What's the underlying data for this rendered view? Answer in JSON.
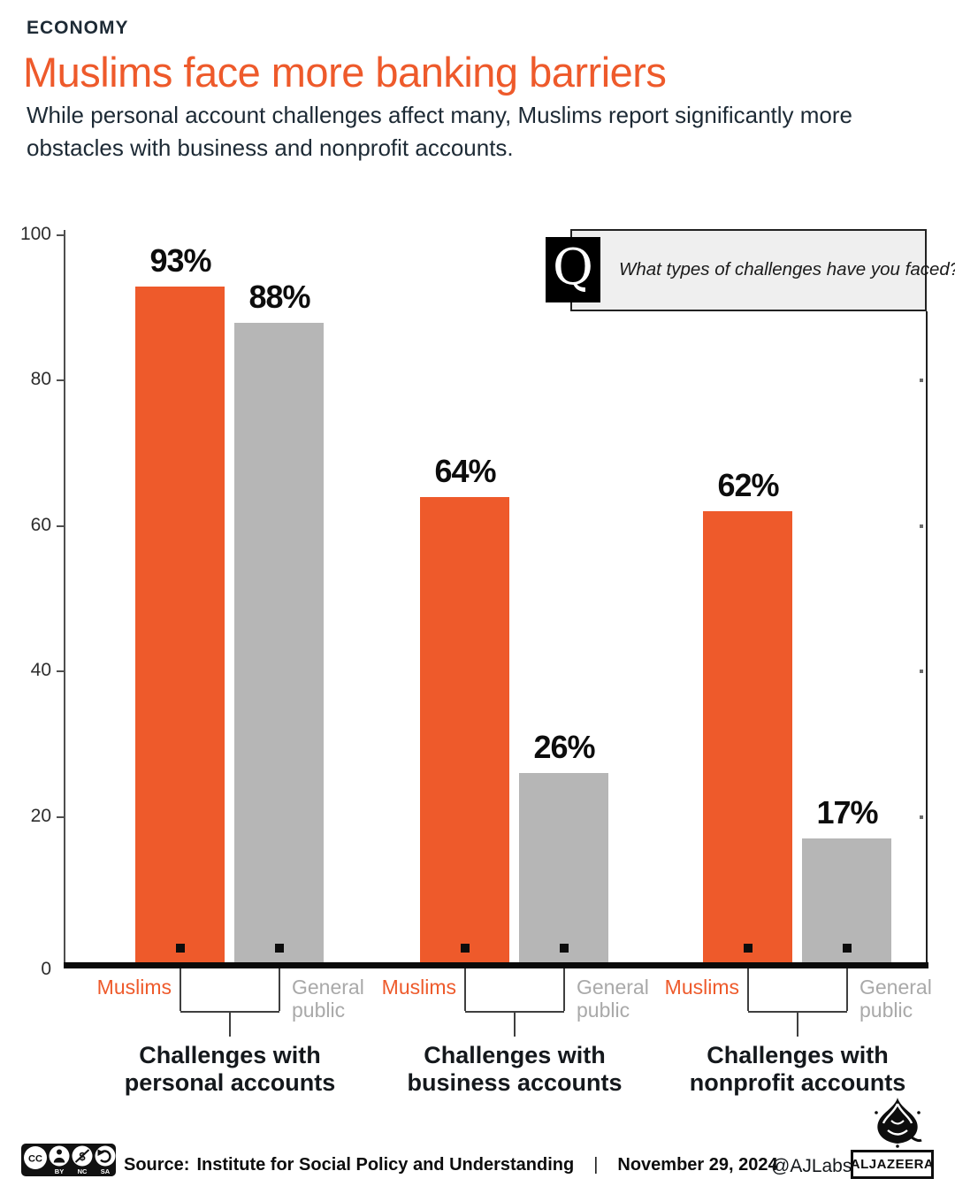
{
  "kicker": "ECONOMY",
  "title": "Muslims face more banking barriers",
  "subtitle": "While personal account challenges affect many, Muslims report significantly more obstacles with business and nonprofit accounts.",
  "question_box": {
    "q_glyph": "Q",
    "text": "What types of challenges have you faced?"
  },
  "chart_data": {
    "type": "bar",
    "categories": [
      "Challenges with personal accounts",
      "Challenges with business accounts",
      "Challenges with nonprofit accounts"
    ],
    "series": [
      {
        "name": "Muslims",
        "color": "#ee5a2b",
        "values": [
          93,
          64,
          62
        ]
      },
      {
        "name": "General public",
        "color": "#b6b6b6",
        "values": [
          88,
          26,
          17
        ]
      }
    ],
    "value_suffix": "%",
    "ylabel": "",
    "xlabel": "",
    "ylim": [
      0,
      100
    ],
    "yticks": [
      0,
      20,
      40,
      60,
      80,
      100
    ],
    "grid": false,
    "legend_position": "below-each-bar"
  },
  "footer": {
    "cc_glyph": "CC",
    "cc_labels": [
      "BY",
      "NC",
      "SA"
    ],
    "source_label": "Source:",
    "source": "Institute for Social Policy and Understanding",
    "separator": "|",
    "date": "November 29, 2024",
    "credit": "@AJLabs",
    "brand": "ALJAZEERA"
  },
  "colors": {
    "accent_orange": "#ee5a2b",
    "bar_gray": "#b6b6b6",
    "text_dark": "#1d2a35",
    "label_gray": "#a9a9a9",
    "black": "#0d0d0d",
    "question_box_bg": "#efefef"
  }
}
